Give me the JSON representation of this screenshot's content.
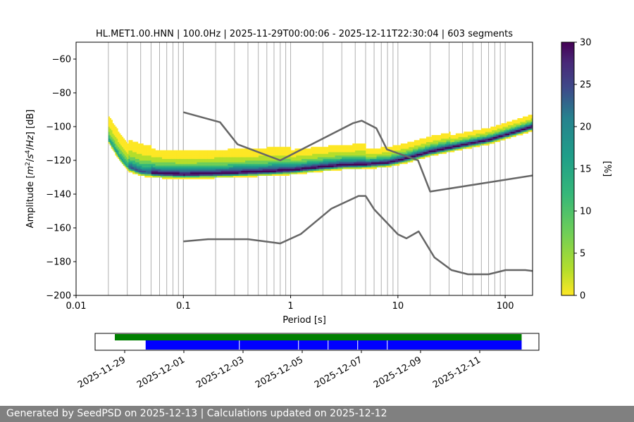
{
  "chart_data": [
    {
      "type": "heatmap",
      "title": "HL.MET1.00.HNN | 100.0Hz | 2025-11-29T00:00:06 - 2025-12-11T22:30:04 | 603 segments",
      "xlabel": "Period [s]",
      "ylabel_parts": [
        "Amplitude [",
        "m",
        "2",
        "/",
        "s",
        "4",
        "/",
        "Hz",
        "] [dB]"
      ],
      "x_scale": "log",
      "xlim": [
        0.01,
        180
      ],
      "ylim": [
        -200,
        -50
      ],
      "x_ticks": [
        0.01,
        0.1,
        1,
        10,
        100
      ],
      "x_tick_labels": [
        "0.01",
        "0.1",
        "1",
        "10",
        "100"
      ],
      "y_ticks": [
        -200,
        -180,
        -160,
        -140,
        -120,
        -100,
        -80,
        -60
      ],
      "y_tick_labels": [
        "−200",
        "−180",
        "−160",
        "−140",
        "−120",
        "−100",
        "−80",
        "−60"
      ],
      "grid_periods": [
        0.02,
        0.03,
        0.04,
        0.05,
        0.06,
        0.07,
        0.08,
        0.09,
        0.1,
        0.2,
        0.3,
        0.4,
        0.5,
        0.6,
        0.7,
        0.8,
        0.9,
        2,
        3,
        4,
        5,
        6,
        7,
        8,
        9,
        20,
        30,
        40,
        50,
        60,
        70,
        80,
        90
      ],
      "colorbar": {
        "label": "[%]",
        "range": [
          0,
          30
        ],
        "ticks": [
          0,
          5,
          10,
          15,
          20,
          25,
          30
        ],
        "colormap": "viridis_r"
      },
      "mode_curve": [
        [
          0.02,
          -108
        ],
        [
          0.025,
          -118
        ],
        [
          0.03,
          -124
        ],
        [
          0.04,
          -127
        ],
        [
          0.06,
          -128
        ],
        [
          0.1,
          -128.5
        ],
        [
          0.2,
          -128
        ],
        [
          0.5,
          -127
        ],
        [
          1,
          -126
        ],
        [
          2,
          -124
        ],
        [
          3,
          -123
        ],
        [
          5,
          -122.5
        ],
        [
          8,
          -121.5
        ],
        [
          12,
          -119
        ],
        [
          20,
          -115
        ],
        [
          40,
          -111
        ],
        [
          70,
          -108
        ],
        [
          100,
          -105
        ],
        [
          180,
          -100
        ]
      ],
      "noise_models": [
        {
          "name": "high",
          "points": [
            [
              0.1,
              -91.5
            ],
            [
              0.22,
              -97.4
            ],
            [
              0.32,
              -110.5
            ],
            [
              0.8,
              -120
            ],
            [
              3.8,
              -98
            ],
            [
              4.6,
              -96.5
            ],
            [
              6.3,
              -101
            ],
            [
              7.9,
              -113.5
            ],
            [
              15.4,
              -120
            ],
            [
              20,
              -138.5
            ],
            [
              354.8,
              -126
            ]
          ]
        },
        {
          "name": "low",
          "points": [
            [
              0.1,
              -168
            ],
            [
              0.17,
              -166.7
            ],
            [
              0.4,
              -166.7
            ],
            [
              0.8,
              -169.2
            ],
            [
              1.24,
              -163.7
            ],
            [
              2.4,
              -148.6
            ],
            [
              4.3,
              -141.1
            ],
            [
              5.0,
              -141.1
            ],
            [
              6.0,
              -149.0
            ],
            [
              10.0,
              -163.8
            ],
            [
              12.0,
              -166.2
            ],
            [
              15.6,
              -162.1
            ],
            [
              21.9,
              -177.5
            ],
            [
              31.6,
              -185.0
            ],
            [
              45.0,
              -187.5
            ],
            [
              70.0,
              -187.5
            ],
            [
              101.0,
              -185.0
            ],
            [
              154.0,
              -185.0
            ],
            [
              328.0,
              -187.5
            ]
          ]
        }
      ]
    },
    {
      "type": "timeline",
      "date_range": [
        "2025-11-28",
        "2025-12-13"
      ],
      "tick_labels": [
        "2025-11-29",
        "2025-12-01",
        "2025-12-03",
        "2025-12-05",
        "2025-12-07",
        "2025-12-09",
        "2025-12-11"
      ],
      "tick_dates": [
        "2025-11-29",
        "2025-12-01",
        "2025-12-03",
        "2025-12-05",
        "2025-12-07",
        "2025-12-09",
        "2025-12-11"
      ],
      "coverage": [
        {
          "name": "data",
          "color": "#008000",
          "start": "2025-11-28T16:00",
          "end": "2025-12-12T10:00"
        },
        {
          "name": "used",
          "color": "#0000ff",
          "start": "2025-11-29T17:00",
          "end": "2025-12-12T10:00"
        }
      ],
      "gaps": [
        "2025-12-02T21:00",
        "2025-12-04T21:00",
        "2025-12-05T21:00",
        "2025-12-06T21:00",
        "2025-12-07T21:00"
      ]
    }
  ],
  "footer": {
    "text": "Generated by SeedPSD on 2025-12-13 | Calculations updated on 2025-12-12"
  }
}
